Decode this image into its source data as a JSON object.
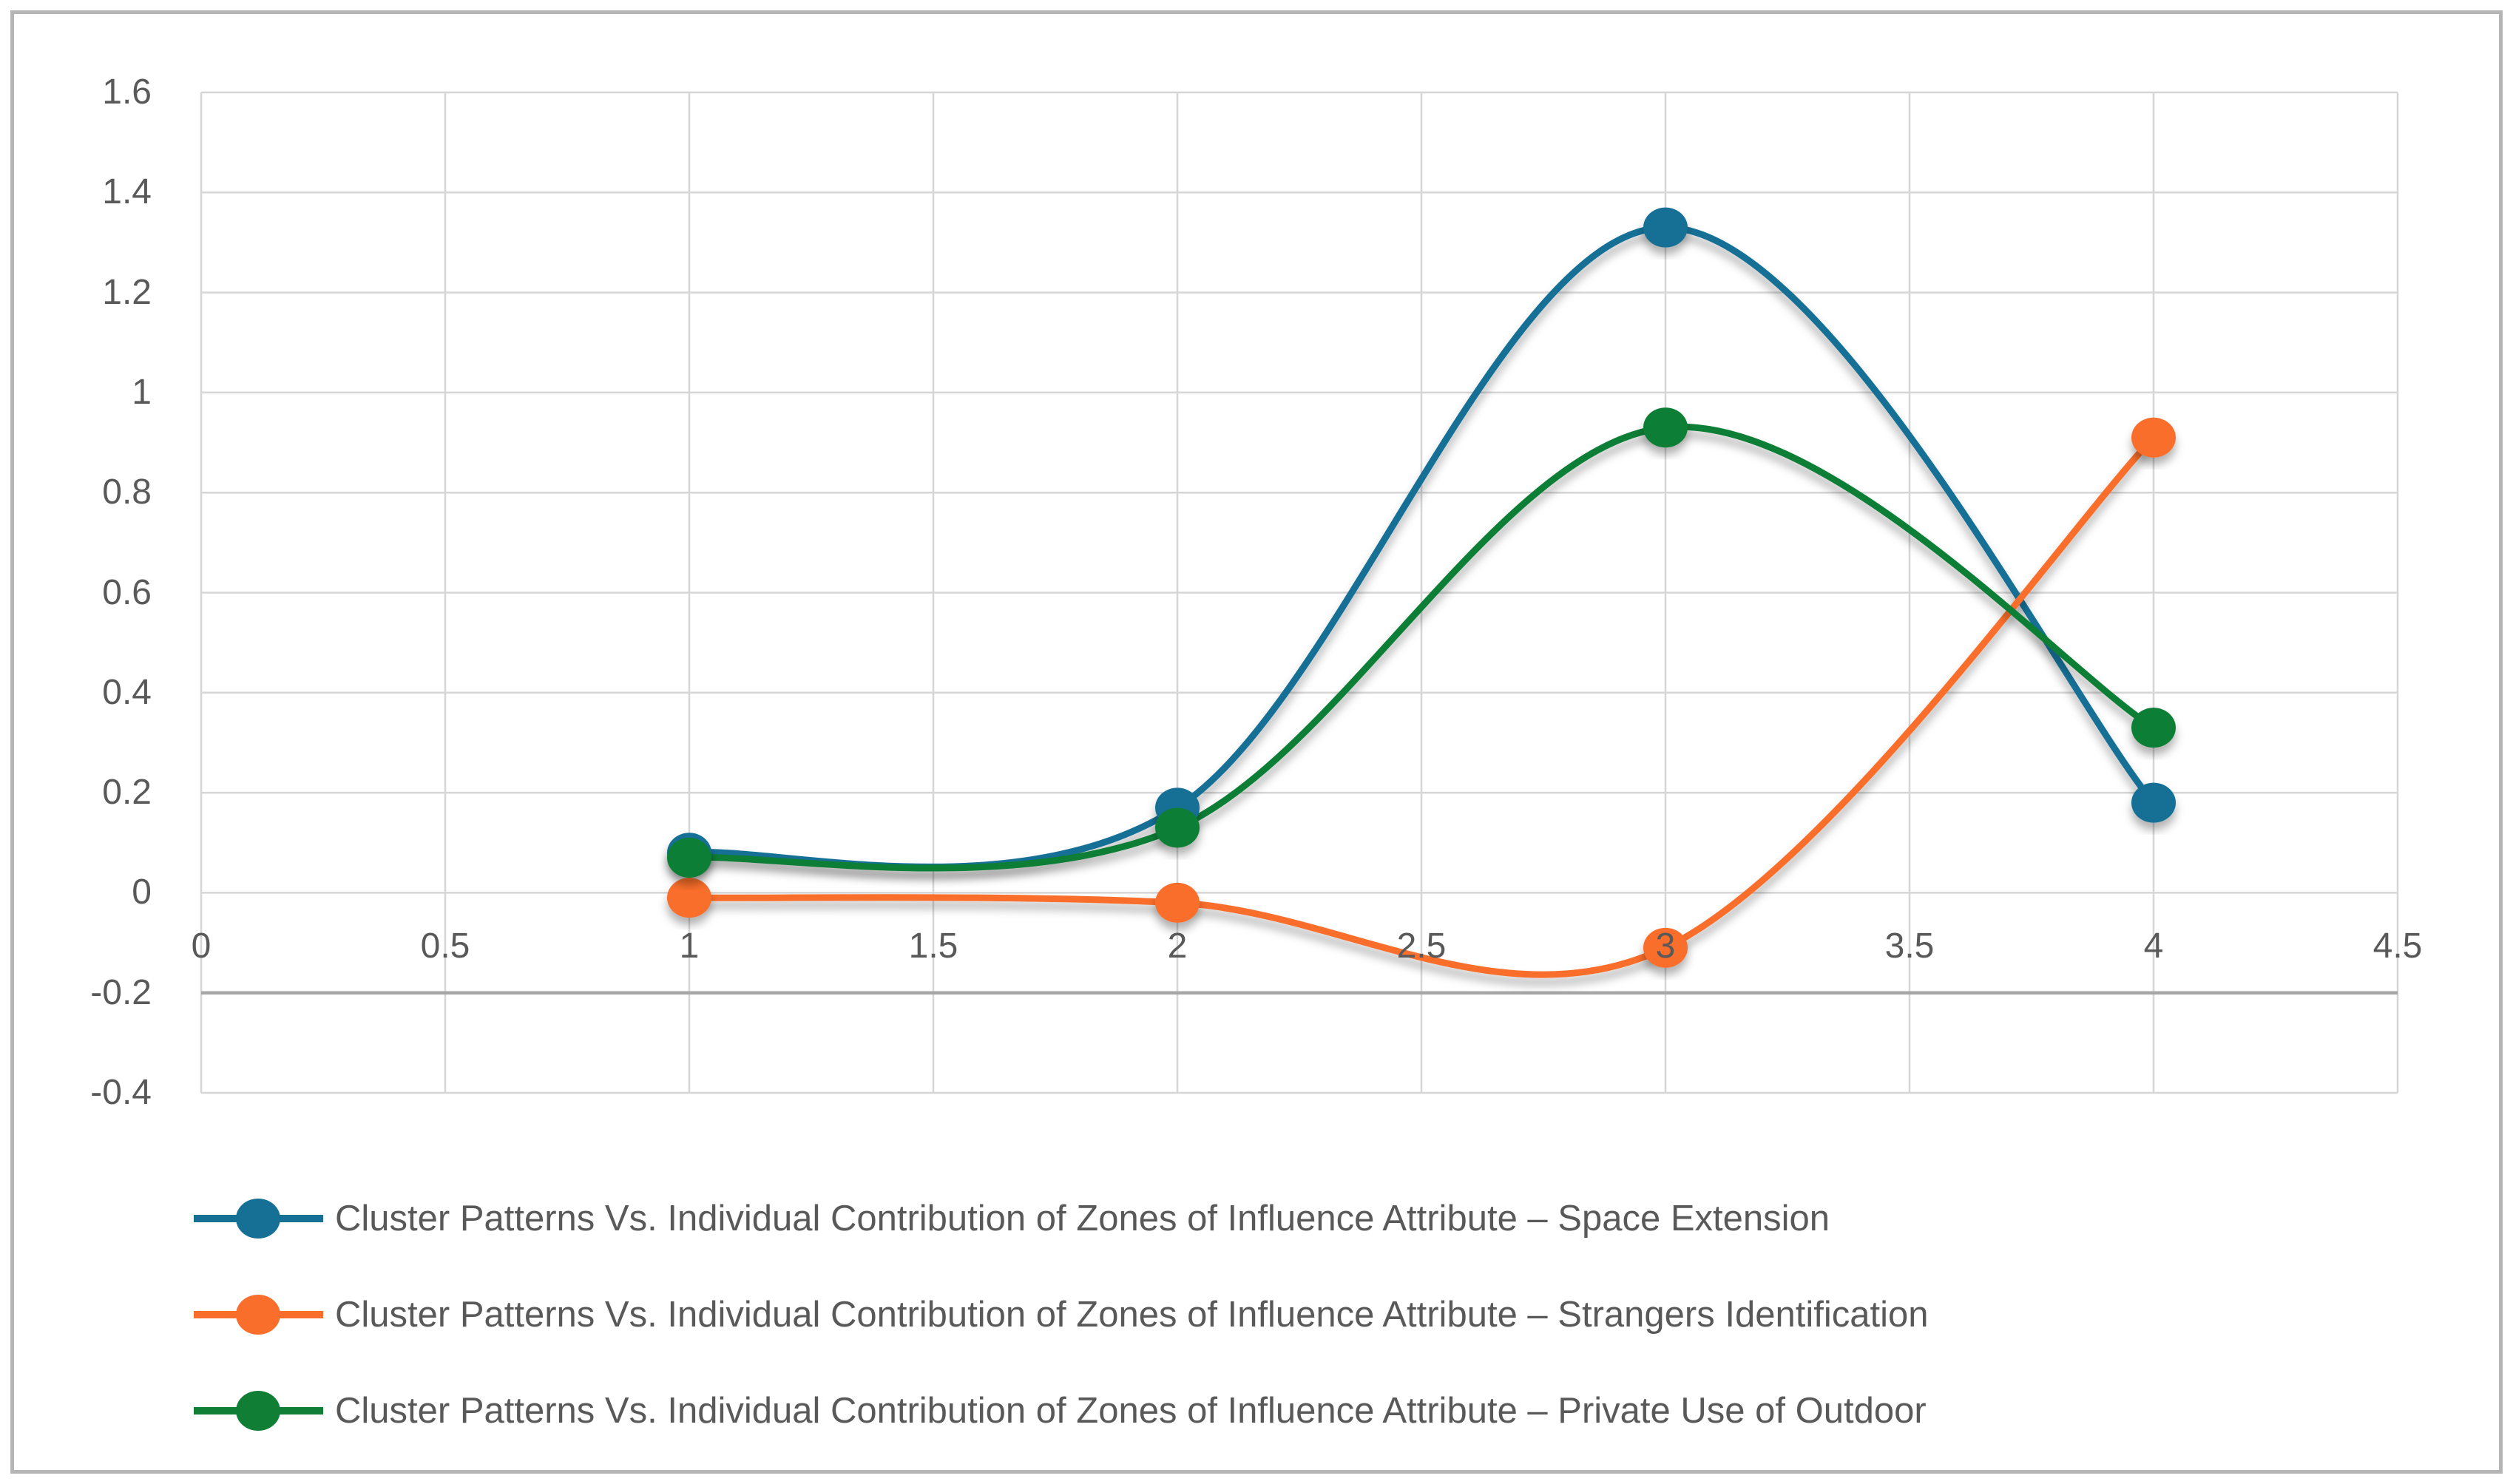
{
  "chart_data": {
    "type": "line",
    "smooth": true,
    "marker": "circle",
    "x": [
      1,
      2,
      3,
      4
    ],
    "series": [
      {
        "name": "Cluster Patterns Vs. Individual Contribution of Zones of Influence Attribute – Space Extension",
        "color": "#167096",
        "values": [
          0.08,
          0.17,
          1.33,
          0.18
        ]
      },
      {
        "name": "Cluster Patterns Vs. Individual Contribution of Zones of Influence Attribute – Strangers Identification",
        "color": "#F96E2B",
        "values": [
          -0.01,
          -0.02,
          -0.11,
          0.91
        ]
      },
      {
        "name": "Cluster Patterns Vs. Individual Contribution of Zones of Influence Attribute – Private Use of Outdoor",
        "color": "#117E36",
        "values": [
          0.07,
          0.13,
          0.93,
          0.33
        ]
      }
    ],
    "xlim": [
      0,
      4.5
    ],
    "ylim": [
      -0.4,
      1.6
    ],
    "x_tick_labels": [
      "0",
      "0.5",
      "1",
      "1.5",
      "2",
      "2.5",
      "3",
      "3.5",
      "4",
      "4.5"
    ],
    "y_tick_labels": [
      "1.6",
      "1.4",
      "1.2",
      "1",
      "0.8",
      "0.6",
      "0.4",
      "0.2",
      "0",
      "-0.2",
      "-0.4"
    ],
    "grid": true,
    "legend_position": "bottom",
    "axis_line_at": -0.2,
    "colors": {
      "gridline": "#D6D6D6",
      "axis_line": "#A6A6A6",
      "tick_label": "#595959",
      "legend_text": "#595959",
      "frame_border": "#B5B5B5",
      "background": "#FFFFFF"
    }
  }
}
